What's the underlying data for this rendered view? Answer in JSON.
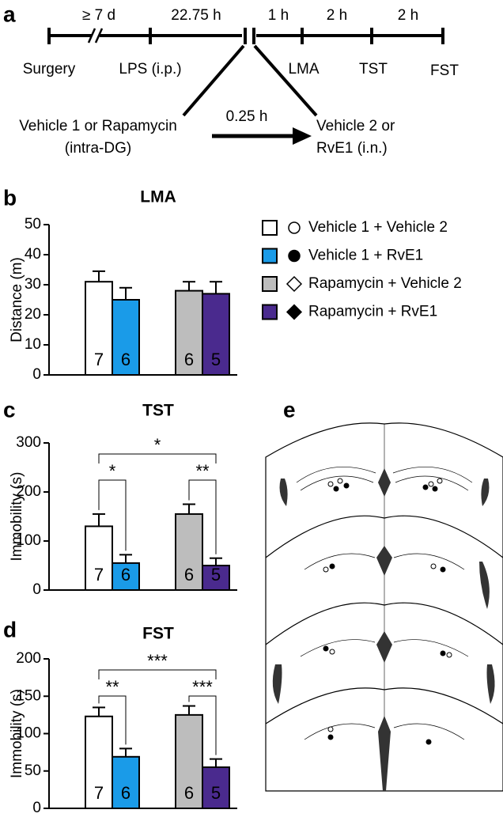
{
  "panel_labels": [
    "a",
    "b",
    "c",
    "d",
    "e"
  ],
  "timeline": {
    "intervals": [
      "≥ 7 d",
      "22.75 h",
      "1 h",
      "2 h",
      "2 h"
    ],
    "events": [
      "Surgery",
      "LPS (i.p.)",
      "LMA",
      "TST",
      "FST"
    ],
    "left_treatment": [
      "Vehicle 1 or Rapamycin",
      "(intra-DG)"
    ],
    "gap": "0.25 h",
    "right_treatment": [
      "Vehicle 2 or",
      "RvE1 (i.n.)"
    ]
  },
  "chart_data": [
    {
      "type": "bar",
      "title": "LMA",
      "ylabel": "Distance (m)",
      "categories": [
        "Vehicle 1 + Vehicle 2",
        "Vehicle 1 + RvE1",
        "Rapamycin + Vehicle 2",
        "Rapamycin + RvE1"
      ],
      "colors": [
        "#ffffff",
        "#1a9be8",
        "#bdbdbd",
        "#4a2a8e"
      ],
      "values": [
        31,
        25,
        28,
        27
      ],
      "errors": [
        3.5,
        4,
        3,
        4
      ],
      "n": [
        7,
        6,
        6,
        5
      ],
      "ylim": [
        0,
        50
      ],
      "yticks": [
        0,
        10,
        20,
        30,
        40,
        50
      ],
      "legend": true
    },
    {
      "type": "bar",
      "title": "TST",
      "ylabel": "Immobility (s)",
      "colors": [
        "#ffffff",
        "#1a9be8",
        "#bdbdbd",
        "#4a2a8e"
      ],
      "values": [
        130,
        55,
        155,
        50
      ],
      "errors": [
        25,
        17,
        20,
        15
      ],
      "n": [
        7,
        6,
        6,
        5
      ],
      "ylim": [
        0,
        300
      ],
      "yticks": [
        0,
        100,
        200,
        300
      ],
      "significance": [
        "*",
        "*",
        "**"
      ]
    },
    {
      "type": "bar",
      "title": "FST",
      "ylabel": "Immobility (s)",
      "colors": [
        "#ffffff",
        "#1a9be8",
        "#bdbdbd",
        "#4a2a8e"
      ],
      "values": [
        123,
        69,
        125,
        55
      ],
      "errors": [
        12,
        11,
        12,
        11
      ],
      "n": [
        7,
        6,
        6,
        5
      ],
      "ylim": [
        0,
        200
      ],
      "yticks": [
        0,
        50,
        100,
        150,
        200
      ],
      "significance": [
        "***",
        "**",
        "***"
      ]
    }
  ]
}
